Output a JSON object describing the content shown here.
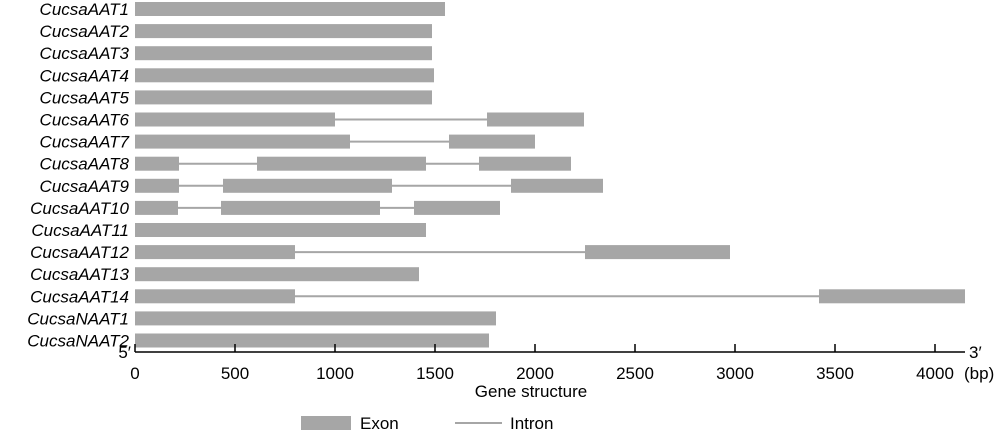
{
  "chart_data": {
    "type": "gene-structure",
    "xlabel": "Gene structure",
    "unit": "(bp)",
    "end_left": "5′",
    "end_right": "3′",
    "xlim": [
      0,
      4150
    ],
    "ticks": [
      "0",
      "500",
      "1000",
      "1500",
      "2000",
      "2500",
      "3000",
      "3500",
      "4000"
    ],
    "legend": {
      "exon": "Exon",
      "intron": "Intron"
    },
    "colors": {
      "exon": "#a6a6a6",
      "intron": "#a6a6a6",
      "axis": "#000000"
    },
    "genes": [
      {
        "name": "CucsaAAT1",
        "exons": [
          [
            0,
            1550
          ]
        ]
      },
      {
        "name": "CucsaAAT2",
        "exons": [
          [
            0,
            1485
          ]
        ]
      },
      {
        "name": "CucsaAAT3",
        "exons": [
          [
            0,
            1485
          ]
        ]
      },
      {
        "name": "CucsaAAT4",
        "exons": [
          [
            0,
            1495
          ]
        ]
      },
      {
        "name": "CucsaAAT5",
        "exons": [
          [
            0,
            1485
          ]
        ]
      },
      {
        "name": "CucsaAAT6",
        "exons": [
          [
            0,
            1000
          ],
          [
            1760,
            2245
          ]
        ]
      },
      {
        "name": "CucsaAAT7",
        "exons": [
          [
            0,
            1075
          ],
          [
            1570,
            2000
          ]
        ]
      },
      {
        "name": "CucsaAAT8",
        "exons": [
          [
            0,
            220
          ],
          [
            610,
            1455
          ],
          [
            1720,
            2180
          ]
        ]
      },
      {
        "name": "CucsaAAT9",
        "exons": [
          [
            0,
            220
          ],
          [
            440,
            1285
          ],
          [
            1880,
            2340
          ]
        ]
      },
      {
        "name": "CucsaAAT10",
        "exons": [
          [
            0,
            215
          ],
          [
            430,
            1225
          ],
          [
            1395,
            1825
          ]
        ]
      },
      {
        "name": "CucsaAAT11",
        "exons": [
          [
            0,
            1455
          ]
        ]
      },
      {
        "name": "CucsaAAT12",
        "exons": [
          [
            0,
            800
          ],
          [
            2250,
            2975
          ]
        ]
      },
      {
        "name": "CucsaAAT13",
        "exons": [
          [
            0,
            1420
          ]
        ]
      },
      {
        "name": "CucsaAAT14",
        "exons": [
          [
            0,
            800
          ],
          [
            3420,
            4150
          ]
        ]
      },
      {
        "name": "CucsaNAAT1",
        "exons": [
          [
            0,
            1805
          ]
        ]
      },
      {
        "name": "CucsaNAAT2",
        "exons": [
          [
            0,
            1770
          ]
        ]
      }
    ]
  }
}
